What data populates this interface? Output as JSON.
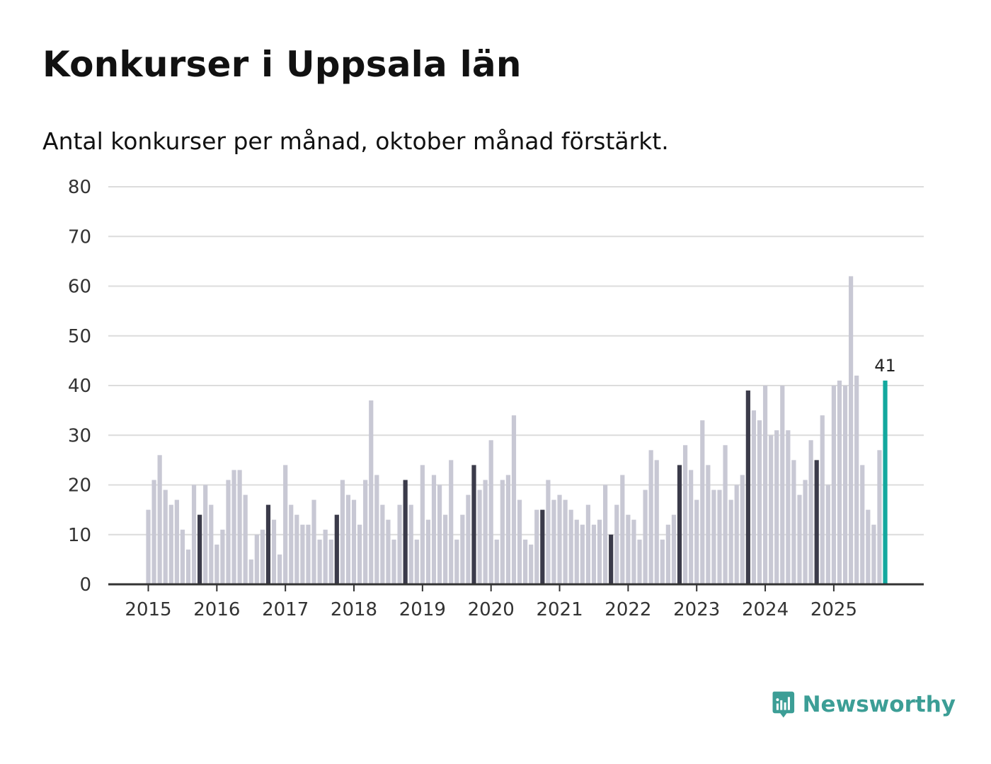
{
  "chart_data": {
    "type": "bar",
    "title": "Konkurser i Uppsala län",
    "subtitle": "Antal konkurser per månad, oktober månad förstärkt.",
    "xlabel": "",
    "ylabel": "",
    "ylim": [
      0,
      80
    ],
    "yticks": [
      0,
      10,
      20,
      30,
      40,
      50,
      60,
      70,
      80
    ],
    "x_tick_labels": [
      "2015",
      "2016",
      "2017",
      "2018",
      "2019",
      "2020",
      "2021",
      "2022",
      "2023",
      "2024",
      "2025"
    ],
    "start": "2015-01",
    "highlight_month": "oktober",
    "grid": true,
    "series": [
      {
        "name": "Antal konkurser",
        "values": [
          15,
          21,
          26,
          19,
          16,
          17,
          11,
          7,
          20,
          14,
          20,
          16,
          8,
          11,
          21,
          23,
          23,
          18,
          5,
          10,
          11,
          16,
          13,
          6,
          24,
          16,
          14,
          12,
          12,
          17,
          9,
          11,
          9,
          14,
          21,
          18,
          17,
          12,
          21,
          37,
          22,
          16,
          13,
          9,
          16,
          21,
          16,
          9,
          24,
          13,
          22,
          20,
          14,
          25,
          9,
          14,
          18,
          24,
          19,
          21,
          29,
          9,
          21,
          22,
          34,
          17,
          9,
          8,
          15,
          15,
          21,
          17,
          18,
          17,
          15,
          13,
          12,
          16,
          12,
          13,
          20,
          10,
          16,
          22,
          14,
          13,
          9,
          19,
          27,
          25,
          9,
          12,
          14,
          24,
          28,
          23,
          17,
          33,
          24,
          19,
          19,
          28,
          17,
          20,
          22,
          39,
          35,
          33,
          40,
          30,
          31,
          40,
          31,
          25,
          18,
          21,
          29,
          25,
          34,
          20,
          40,
          41,
          40,
          62,
          42,
          24,
          15,
          12,
          27,
          41
        ]
      }
    ],
    "annotations": [
      {
        "text": "41",
        "target": "2025-10"
      }
    ],
    "colors": {
      "bar": "#c8c8d4",
      "october": "#3b3b4a",
      "latest": "#13a89e",
      "grid": "#dcdcdc",
      "axis": "#333333"
    }
  },
  "brand": {
    "name": "Newsworthy",
    "icon": "newsworthy-logo-icon",
    "color": "#3c9e96"
  }
}
